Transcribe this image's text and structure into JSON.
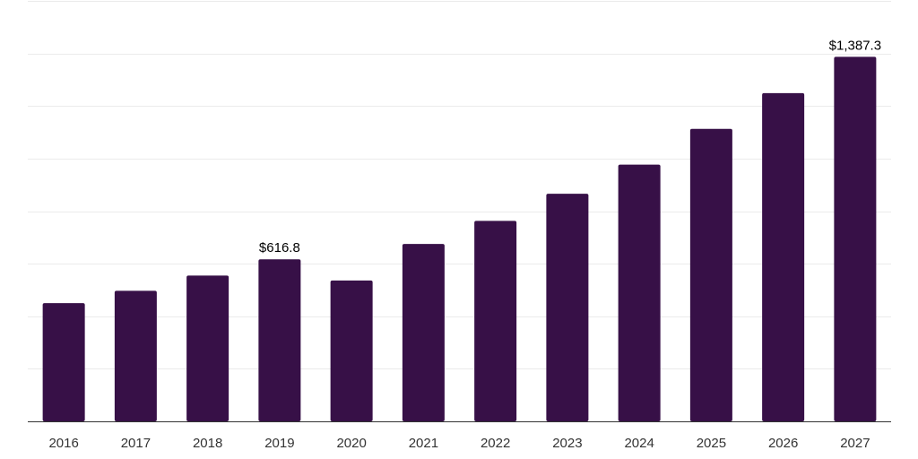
{
  "chart_data": {
    "type": "bar",
    "title": "",
    "xlabel": "",
    "ylabel": "",
    "categories": [
      "2016",
      "2017",
      "2018",
      "2019",
      "2020",
      "2021",
      "2022",
      "2023",
      "2024",
      "2025",
      "2026",
      "2027"
    ],
    "values": [
      450,
      497,
      555,
      616.8,
      536,
      675,
      763,
      866,
      977,
      1113,
      1249,
      1387.3
    ],
    "value_labels": [
      "",
      "",
      "",
      "$616.8",
      "",
      "",
      "",
      "",
      "",
      "",
      "",
      "$1,387.3"
    ],
    "ylim": [
      0,
      1600
    ],
    "y_gridlines": [
      0,
      200,
      400,
      600,
      800,
      1000,
      1200,
      1400,
      1600
    ],
    "grid": true,
    "legend": "none",
    "bar_color": "#371047"
  }
}
